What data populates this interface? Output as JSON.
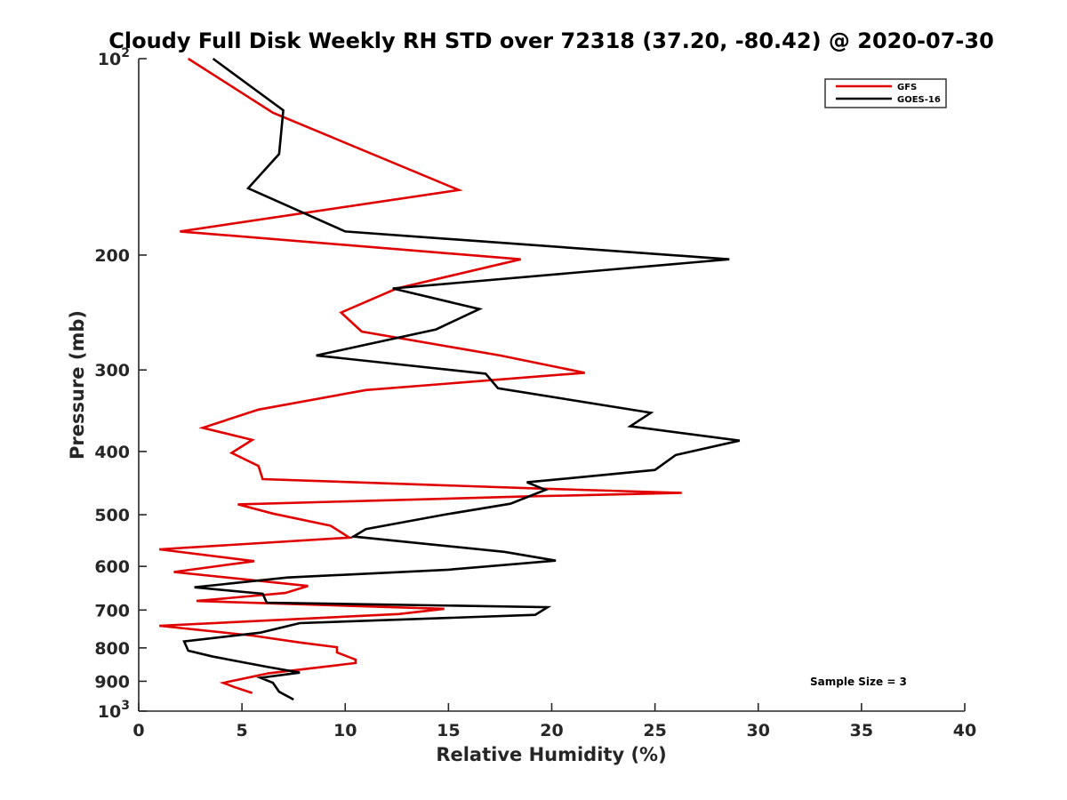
{
  "chart_data": {
    "type": "line",
    "title": "Cloudy Full Disk Weekly RH STD over 72318 (37.20, -80.42) @ 2020-07-30",
    "xlabel": "Relative Humidity (%)",
    "ylabel": "Pressure (mb)",
    "xlim": [
      0,
      40
    ],
    "ylim": [
      100,
      1000
    ],
    "yscale": "log",
    "y_reversed": true,
    "grid": false,
    "legend_position": "top-right",
    "x_ticks": [
      "0",
      "5",
      "10",
      "15",
      "20",
      "25",
      "30",
      "35",
      "40"
    ],
    "y_ticks": [
      {
        "value": 100,
        "base": "10",
        "exp": "2"
      },
      {
        "value": 200,
        "label": "200"
      },
      {
        "value": 300,
        "label": "300"
      },
      {
        "value": 400,
        "label": "400"
      },
      {
        "value": 500,
        "label": "500"
      },
      {
        "value": 600,
        "label": "600"
      },
      {
        "value": 700,
        "label": "700"
      },
      {
        "value": 800,
        "label": "800"
      },
      {
        "value": 900,
        "label": "900"
      },
      {
        "value": 1000,
        "base": "10",
        "exp": "3"
      }
    ],
    "annotation": "Sample Size = 3",
    "series": [
      {
        "name": "GFS",
        "color": "#e00000",
        "points": [
          [
            2.4,
            100
          ],
          [
            6.5,
            121
          ],
          [
            15.5,
            159
          ],
          [
            2.0,
            184
          ],
          [
            18.5,
            203
          ],
          [
            12.5,
            225
          ],
          [
            9.8,
            245
          ],
          [
            10.8,
            262
          ],
          [
            17.5,
            285
          ],
          [
            21.6,
            303
          ],
          [
            11.0,
            322
          ],
          [
            5.8,
            345
          ],
          [
            3.1,
            368
          ],
          [
            5.5,
            384
          ],
          [
            4.5,
            402
          ],
          [
            5.8,
            421
          ],
          [
            6.0,
            441
          ],
          [
            19.5,
            456
          ],
          [
            26.3,
            463
          ],
          [
            18.6,
            469
          ],
          [
            4.8,
            482
          ],
          [
            6.5,
            498
          ],
          [
            9.3,
            520
          ],
          [
            10.2,
            542
          ],
          [
            1.0,
            565
          ],
          [
            5.6,
            589
          ],
          [
            1.7,
            612
          ],
          [
            8.2,
            643
          ],
          [
            7.1,
            659
          ],
          [
            2.8,
            678
          ],
          [
            14.8,
            697
          ],
          [
            12.6,
            710
          ],
          [
            1.0,
            740
          ],
          [
            5.5,
            766
          ],
          [
            7.8,
            785
          ],
          [
            9.6,
            798
          ],
          [
            9.6,
            813
          ],
          [
            10.5,
            834
          ],
          [
            10.5,
            844
          ],
          [
            6.3,
            875
          ],
          [
            4.1,
            905
          ],
          [
            4.6,
            918
          ],
          [
            5.5,
            938
          ]
        ]
      },
      {
        "name": "GOES-16",
        "color": "#000000",
        "points": [
          [
            3.6,
            100
          ],
          [
            7.0,
            120
          ],
          [
            6.8,
            140
          ],
          [
            5.3,
            158
          ],
          [
            10.0,
            184
          ],
          [
            28.6,
            203
          ],
          [
            12.3,
            225
          ],
          [
            16.5,
            242
          ],
          [
            14.4,
            260
          ],
          [
            8.6,
            285
          ],
          [
            16.8,
            304
          ],
          [
            17.4,
            320
          ],
          [
            24.8,
            349
          ],
          [
            23.8,
            366
          ],
          [
            29.1,
            385
          ],
          [
            26.0,
            405
          ],
          [
            25.0,
            427
          ],
          [
            18.8,
            446
          ],
          [
            19.7,
            458
          ],
          [
            18.0,
            481
          ],
          [
            14.8,
            500
          ],
          [
            11.0,
            526
          ],
          [
            10.4,
            540
          ],
          [
            17.7,
            570
          ],
          [
            20.2,
            588
          ],
          [
            15.0,
            607
          ],
          [
            7.2,
            624
          ],
          [
            2.7,
            646
          ],
          [
            6.0,
            661
          ],
          [
            6.2,
            682
          ],
          [
            19.8,
            693
          ],
          [
            19.2,
            712
          ],
          [
            7.8,
            733
          ],
          [
            5.9,
            758
          ],
          [
            2.2,
            782
          ],
          [
            2.4,
            808
          ],
          [
            3.6,
            825
          ],
          [
            6.2,
            855
          ],
          [
            7.8,
            873
          ],
          [
            5.9,
            889
          ],
          [
            6.5,
            905
          ],
          [
            6.8,
            934
          ],
          [
            7.5,
            960
          ]
        ]
      }
    ]
  }
}
